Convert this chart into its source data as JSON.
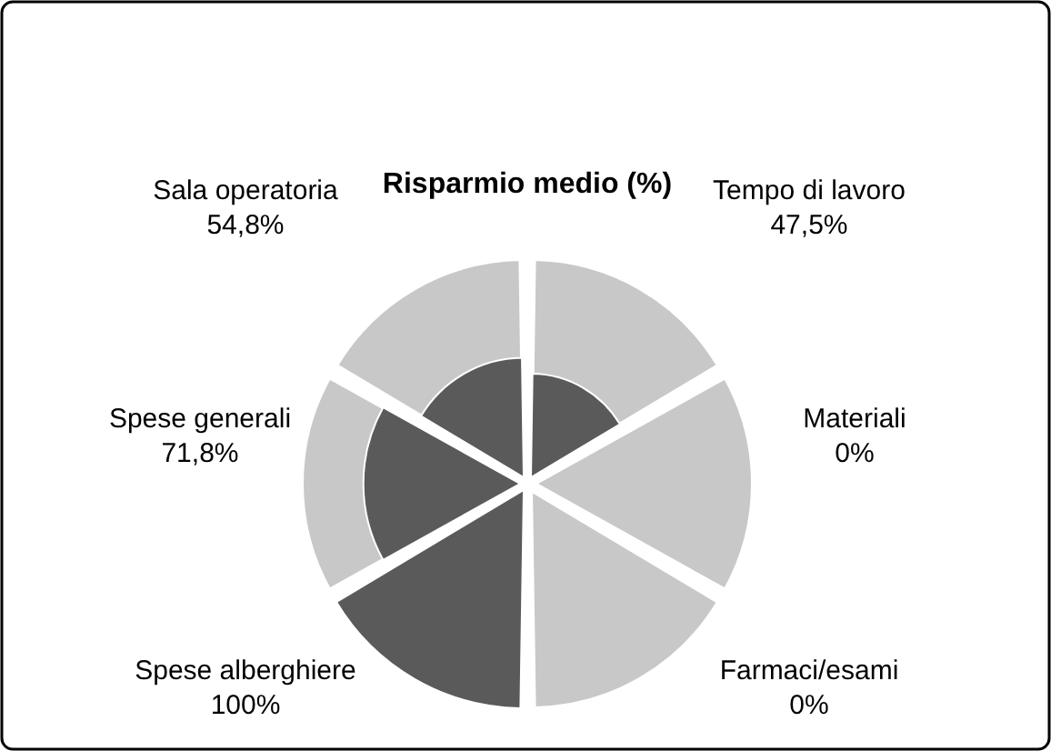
{
  "chart_data": {
    "type": "other",
    "title": "Risparmio medio (%)",
    "categories": [
      "Tempo di lavoro",
      "Materiali",
      "Farmaci/esami",
      "Spese alberghiere",
      "Spese generali",
      "Sala operatoria"
    ],
    "values": [
      47.5,
      0,
      0,
      100,
      71.8,
      54.8
    ],
    "value_labels": [
      "47,5%",
      "0%",
      "0%",
      "100%",
      "71,8%",
      "54,8%"
    ],
    "color": "#5a5a5a"
  }
}
